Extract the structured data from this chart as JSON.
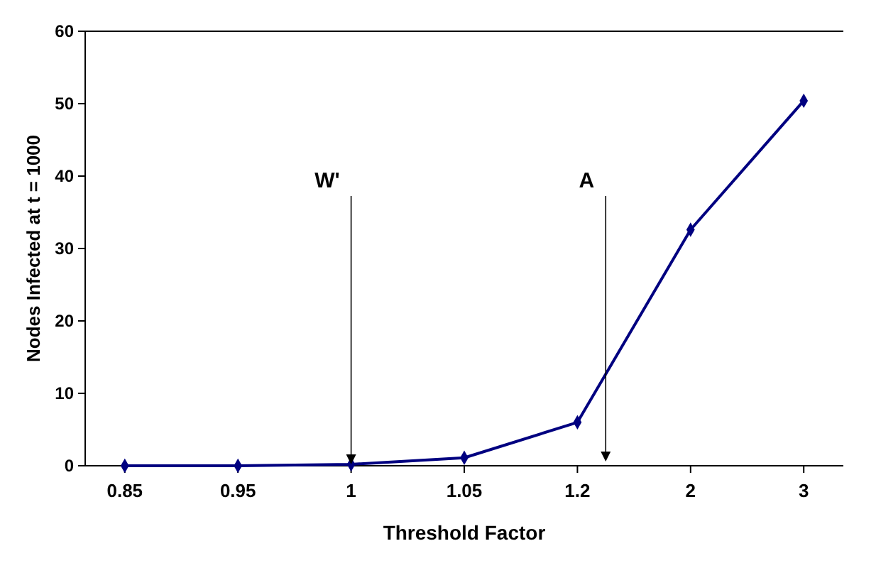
{
  "chart_data": {
    "type": "line",
    "xlabel": "Threshold Factor",
    "ylabel": "Nodes Infected at t = 1000",
    "categories": [
      "0.85",
      "0.95",
      "1",
      "1.05",
      "1.2",
      "2",
      "3"
    ],
    "series": [
      {
        "color": "#000080",
        "values": [
          0,
          0,
          0.2,
          1.1,
          6,
          32.6,
          50.4
        ]
      }
    ],
    "ylim": [
      0,
      60
    ],
    "yticks": [
      0,
      10,
      20,
      30,
      40,
      50,
      60
    ],
    "grid": false,
    "marker": "diamond",
    "line_style": "solid",
    "annotations": [
      {
        "text": "W'",
        "x": "1",
        "y": 0.2
      },
      "A"
    ]
  }
}
